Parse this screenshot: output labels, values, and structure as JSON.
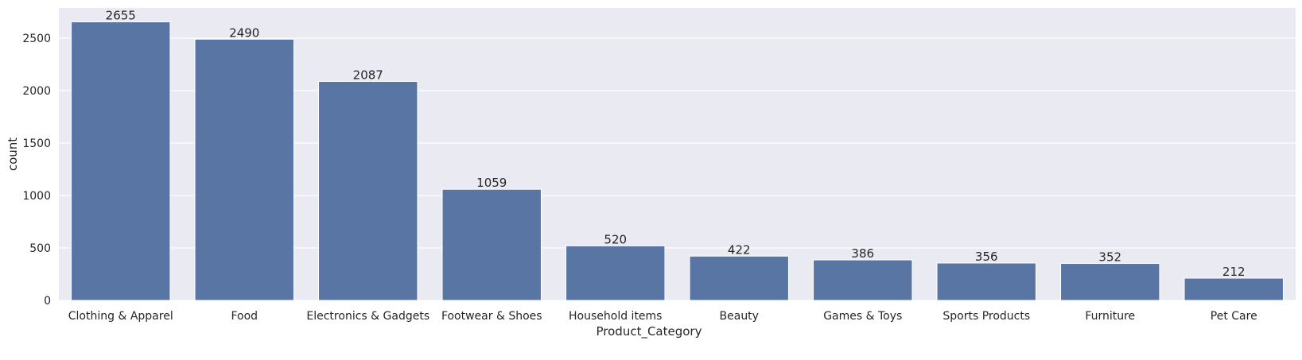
{
  "chart_data": {
    "type": "bar",
    "title": "",
    "xlabel": "Product_Category",
    "ylabel": "count",
    "categories": [
      "Clothing & Apparel",
      "Food",
      "Electronics & Gadgets",
      "Footwear & Shoes",
      "Household items",
      "Beauty",
      "Games & Toys",
      "Sports Products",
      "Furniture",
      "Pet Care"
    ],
    "values": [
      2655,
      2490,
      2087,
      1059,
      520,
      422,
      386,
      356,
      352,
      212
    ],
    "data_labels": [
      "2655",
      "2490",
      "2087",
      "1059",
      "520",
      "422",
      "386",
      "356",
      "352",
      "212"
    ],
    "yticks": [
      0,
      500,
      1000,
      1500,
      2000,
      2500
    ],
    "ytick_labels": [
      "0",
      "500",
      "1000",
      "1500",
      "2000",
      "2500"
    ],
    "ylim": [
      0,
      2787.75
    ],
    "grid": true,
    "legend": "none",
    "colors": {
      "bar": "#5875a4",
      "background": "#eaeaf2",
      "grid": "#ffffff",
      "text": "#262626"
    }
  }
}
